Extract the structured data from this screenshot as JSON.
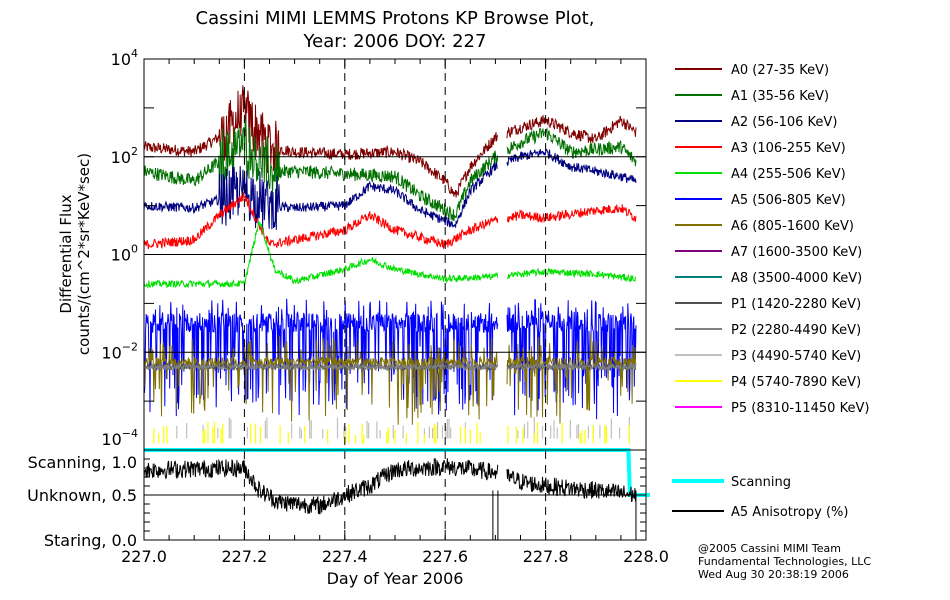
{
  "chart_data": {
    "type": "line",
    "title": [
      "Cassini MIMI LEMMS Protons KP Browse Plot,",
      "Year: 2006 DOY: 227"
    ],
    "xlabel": "Day of Year 2006",
    "ylabel": [
      "Differential Flux",
      "counts/(cm^2*sr*KeV*sec)"
    ],
    "xlim": [
      227.0,
      228.0
    ],
    "x_ticks": [
      "227.0",
      "227.2",
      "227.4",
      "227.6",
      "227.8",
      "228.0"
    ],
    "x_tick_values": [
      227.0,
      227.2,
      227.4,
      227.6,
      227.8,
      228.0
    ],
    "y_scale": "log",
    "ylim": [
      0.0001,
      10000
    ],
    "y_ticks": [
      {
        "base": "10",
        "exp": "4",
        "value": 4
      },
      {
        "base": "10",
        "exp": "2",
        "value": 2
      },
      {
        "base": "10",
        "exp": "0",
        "value": 0
      },
      {
        "base": "10",
        "exp": "−2",
        "value": -2
      },
      {
        "base": "10",
        "exp": "−4",
        "value": -4
      }
    ],
    "lower_panel": {
      "ylim": [
        0.0,
        1.0
      ],
      "y_ticks": [
        {
          "label": "Scanning, 1.0",
          "value": 1.0
        },
        {
          "label": "Unknown, 0.5",
          "value": 0.5
        },
        {
          "label": "Staring, 0.0",
          "value": 0.0
        }
      ]
    },
    "grid": "dashed vertical at ticks, solid horizontal at 10^2, 10^0, 10^-2 and 0.5",
    "legend_position": "right",
    "series_note": "values are log10 of differential flux, sampled at x (day of year)",
    "series": [
      {
        "name": "A0 (27-35 KeV)",
        "color": "#800000",
        "noise": 0.12,
        "x": [
          227.0,
          227.1,
          227.15,
          227.2,
          227.25,
          227.3,
          227.4,
          227.5,
          227.55,
          227.6,
          227.62,
          227.65,
          227.7,
          227.75,
          227.8,
          227.85,
          227.9,
          227.95,
          227.98
        ],
        "y": [
          2.2,
          2.1,
          2.4,
          2.9,
          2.2,
          2.1,
          2.05,
          2.1,
          1.9,
          1.5,
          1.2,
          1.8,
          2.4,
          2.6,
          2.75,
          2.5,
          2.35,
          2.75,
          2.5
        ]
      },
      {
        "name": "A1 (35-56 KeV)",
        "color": "#007000",
        "noise": 0.14,
        "x": [
          227.0,
          227.1,
          227.15,
          227.2,
          227.25,
          227.3,
          227.4,
          227.5,
          227.55,
          227.62,
          227.65,
          227.7,
          227.75,
          227.8,
          227.85,
          227.95,
          227.98
        ],
        "y": [
          1.7,
          1.5,
          1.9,
          2.3,
          1.7,
          1.7,
          1.65,
          1.6,
          1.2,
          0.8,
          1.5,
          2.0,
          2.3,
          2.5,
          2.1,
          2.2,
          1.9
        ]
      },
      {
        "name": "A2 (56-106 KeV)",
        "color": "#000080",
        "noise": 0.1,
        "x": [
          227.0,
          227.1,
          227.2,
          227.25,
          227.3,
          227.4,
          227.45,
          227.5,
          227.55,
          227.62,
          227.65,
          227.7,
          227.75,
          227.8,
          227.85,
          227.95,
          227.98
        ],
        "y": [
          1.0,
          0.95,
          1.3,
          1.0,
          0.95,
          1.0,
          1.4,
          1.3,
          0.9,
          0.6,
          1.3,
          1.8,
          2.0,
          2.1,
          1.8,
          1.6,
          1.5
        ]
      },
      {
        "name": "A3 (106-255 KeV)",
        "color": "#ff0000",
        "noise": 0.1,
        "x": [
          227.0,
          227.1,
          227.15,
          227.2,
          227.25,
          227.3,
          227.4,
          227.45,
          227.5,
          227.6,
          227.65,
          227.7,
          227.75,
          227.8,
          227.9,
          227.95,
          227.98
        ],
        "y": [
          0.2,
          0.3,
          0.8,
          1.2,
          0.2,
          0.3,
          0.5,
          0.8,
          0.5,
          0.2,
          0.5,
          0.7,
          0.8,
          0.75,
          0.9,
          0.95,
          0.75
        ]
      },
      {
        "name": "A4 (255-506 KeV)",
        "color": "#00e000",
        "noise": 0.07,
        "x": [
          227.0,
          227.2,
          227.23,
          227.26,
          227.3,
          227.4,
          227.45,
          227.5,
          227.6,
          227.7,
          227.8,
          227.9,
          227.98
        ],
        "y": [
          -0.6,
          -0.6,
          0.7,
          -0.3,
          -0.55,
          -0.3,
          -0.1,
          -0.3,
          -0.5,
          -0.45,
          -0.35,
          -0.4,
          -0.5
        ]
      },
      {
        "name": "A5 (506-805 KeV)",
        "color": "#0000ff",
        "noise": 0.2,
        "spiky": true,
        "x": [
          227.0,
          227.5,
          227.98
        ],
        "y": [
          -1.4,
          -1.4,
          -1.4
        ]
      },
      {
        "name": "A6 (805-1600 KeV)",
        "color": "#807000",
        "noise": 0.1,
        "spiky": true,
        "x": [
          227.0,
          227.98
        ],
        "y": [
          -2.2,
          -2.2
        ]
      },
      {
        "name": "A7 (1600-3500 KeV)",
        "color": "#800080",
        "x": [],
        "y": []
      },
      {
        "name": "A8 (3500-4000 KeV)",
        "color": "#008080",
        "x": [],
        "y": []
      },
      {
        "name": "P1 (1420-2280 KeV)",
        "color": "#505050",
        "noise": 0.06,
        "x": [
          227.0,
          227.98
        ],
        "y": [
          -2.3,
          -2.3
        ]
      },
      {
        "name": "P2 (2280-4490 KeV)",
        "color": "#808080",
        "noise": 0.06,
        "x": [
          227.0,
          227.98
        ],
        "y": [
          -2.3,
          -2.3
        ]
      },
      {
        "name": "P3 (4490-5740 KeV)",
        "color": "#c0c0c0",
        "sparse": true,
        "x": [
          227.0,
          227.98
        ],
        "y": [
          -3.6,
          -3.6
        ]
      },
      {
        "name": "P4 (5740-7890 KeV)",
        "color": "#ffff00",
        "sparse": true,
        "x": [
          227.0,
          227.98
        ],
        "y": [
          -3.7,
          -3.7
        ]
      },
      {
        "name": "P5 (8310-11450 KeV)",
        "color": "#ff00ff",
        "x": [],
        "y": []
      }
    ],
    "lower_series": [
      {
        "name": "Scanning",
        "color": "#00ffff",
        "x": [
          227.0,
          227.965,
          227.968,
          228.0
        ],
        "y": [
          1.0,
          1.0,
          0.5,
          0.5
        ]
      },
      {
        "name": "A5 Anisotropy (%)",
        "color": "#000000",
        "noise": 0.05,
        "x": [
          227.0,
          227.2,
          227.23,
          227.27,
          227.35,
          227.4,
          227.45,
          227.5,
          227.6,
          227.7,
          227.75,
          227.8,
          227.9,
          227.98
        ],
        "y": [
          0.78,
          0.8,
          0.55,
          0.42,
          0.38,
          0.5,
          0.6,
          0.78,
          0.82,
          0.75,
          0.65,
          0.6,
          0.55,
          0.5
        ]
      }
    ]
  },
  "footer": {
    "line1": "@2005 Cassini MIMI Team",
    "line2": "Fundamental Technologies, LLC",
    "line3": "Wed Aug 30 20:38:19 2006"
  }
}
